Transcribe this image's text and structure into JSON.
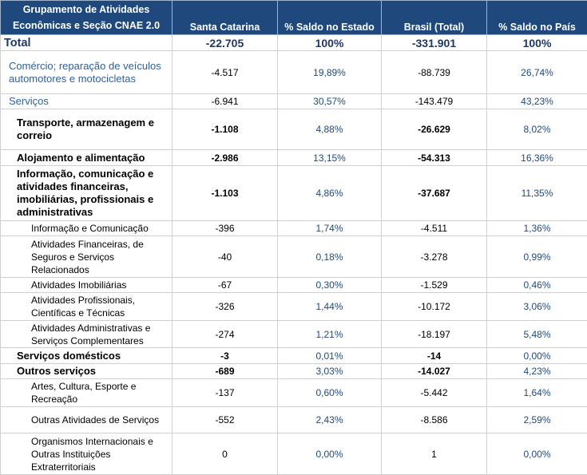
{
  "table": {
    "columns": [
      "Grupamento de Atividades Econômicas e Seção CNAE 2.0",
      "Santa Catarina",
      "% Saldo no Estado",
      "Brasil (Total)",
      "% Saldo no País"
    ],
    "rows": [
      [
        "Total",
        "-22.705",
        "100%",
        "-331.901",
        "100%"
      ],
      [
        "Comércio; reparação de veículos automotores e motocicletas",
        "-4.517",
        "19,89%",
        "-88.739",
        "26,74%"
      ],
      [
        "Serviços",
        "-6.941",
        "30,57%",
        "-143.479",
        "43,23%"
      ],
      [
        "Transporte, armazenagem e correio",
        "-1.108",
        "4,88%",
        "-26.629",
        "8,02%"
      ],
      [
        "Alojamento e alimentação",
        "-2.986",
        "13,15%",
        "-54.313",
        "16,36%"
      ],
      [
        "Informação, comunicação e atividades financeiras, imobiliárias, profissionais e administrativas",
        "-1.103",
        "4,86%",
        "-37.687",
        "11,35%"
      ],
      [
        "Informação e Comunicação",
        "-396",
        "1,74%",
        "-4.511",
        "1,36%"
      ],
      [
        "Atividades Financeiras, de Seguros e Serviços Relacionados",
        "-40",
        "0,18%",
        "-3.278",
        "0,99%"
      ],
      [
        "Atividades Imobiliárias",
        "-67",
        "0,30%",
        "-1.529",
        "0,46%"
      ],
      [
        "Atividades Profissionais, Científicas e Técnicas",
        "-326",
        "1,44%",
        "-10.172",
        "3,06%"
      ],
      [
        "Atividades Administrativas e Serviços Complementares",
        "-274",
        "1,21%",
        "-18.197",
        "5,48%"
      ],
      [
        "Serviços domésticos",
        "-3",
        "0,01%",
        "-14",
        "0,00%"
      ],
      [
        "Outros serviços",
        "-689",
        "3,03%",
        "-14.027",
        "4,23%"
      ],
      [
        "Artes, Cultura, Esporte e Recreação",
        "-137",
        "0,60%",
        "-5.442",
        "1,64%"
      ],
      [
        "Outras Atividades de Serviços",
        "-552",
        "2,43%",
        "-8.586",
        "2,59%"
      ],
      [
        "Organismos Internacionais e Outras Instituições Extraterritoriais",
        "0",
        "0,00%",
        "1",
        "0,00%"
      ]
    ]
  }
}
